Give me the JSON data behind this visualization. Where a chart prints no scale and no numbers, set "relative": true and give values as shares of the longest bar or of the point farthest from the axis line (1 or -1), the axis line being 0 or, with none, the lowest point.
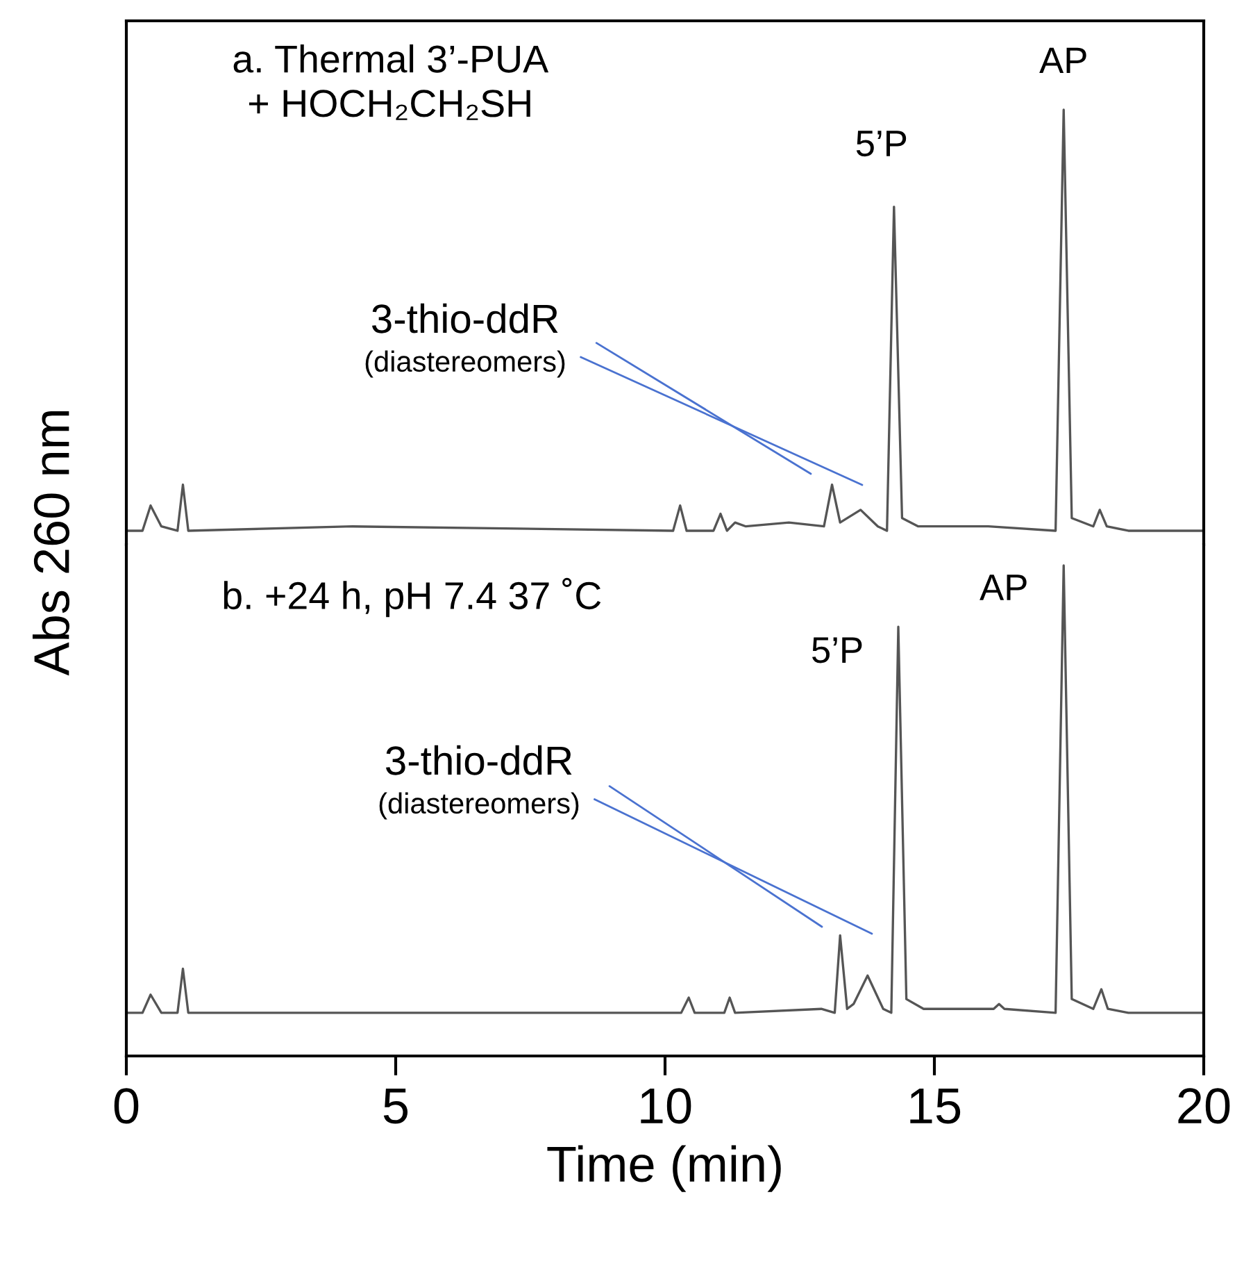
{
  "chart_data": [
    {
      "type": "line",
      "title": "a. Thermal 3’-PUA\n+ HOCH₂CH₂SH",
      "ylabel": "Abs 260 nm",
      "relative": true,
      "xlim": [
        0,
        20
      ],
      "tick_labels": false,
      "series": [
        {
          "color": "#555555",
          "x": [
            0,
            0.3,
            0.45,
            0.65,
            0.95,
            1.05,
            1.15,
            4.2,
            10.15,
            10.28,
            10.4,
            10.9,
            11.03,
            11.15,
            11.3,
            11.5,
            12.3,
            12.95,
            13.1,
            13.25,
            13.63,
            13.95,
            14.12,
            14.25,
            14.4,
            14.7,
            16.0,
            17.25,
            17.4,
            17.55,
            17.95,
            18.07,
            18.2,
            18.6,
            20
          ],
          "values": [
            0.032,
            0.032,
            0.09,
            0.042,
            0.032,
            0.138,
            0.032,
            0.042,
            0.032,
            0.09,
            0.032,
            0.032,
            0.071,
            0.032,
            0.051,
            0.042,
            0.051,
            0.042,
            0.138,
            0.051,
            0.08,
            0.042,
            0.032,
            0.777,
            0.061,
            0.042,
            0.042,
            0.032,
            1,
            0.061,
            0.042,
            0.08,
            0.042,
            0.032,
            0.032
          ]
        }
      ],
      "annotations": [
        "3-thio-ddR",
        "(diastereomers)",
        {
          "text": "5’P",
          "x": 14.25,
          "y": 0.777
        },
        {
          "text": "AP",
          "x": 17.4,
          "y": 1
        }
      ]
    },
    {
      "type": "line",
      "title": "b. +24 h, pH 7.4 37 ˚C",
      "xlabel": "Time (min)",
      "relative": true,
      "xlim": [
        0,
        20
      ],
      "xticks": [
        0,
        5,
        10,
        15,
        20
      ],
      "tick_labels": "x",
      "series": [
        {
          "color": "#555555",
          "x": [
            0,
            0.3,
            0.45,
            0.65,
            0.95,
            1.05,
            1.15,
            10.3,
            10.44,
            10.55,
            11.1,
            11.2,
            11.3,
            12.9,
            13.15,
            13.25,
            13.38,
            13.5,
            13.76,
            14.05,
            14.2,
            14.33,
            14.48,
            14.8,
            16.1,
            16.2,
            16.3,
            17.25,
            17.4,
            17.55,
            17.95,
            18.1,
            18.22,
            18.6,
            20
          ],
          "values": [
            0.088,
            0.088,
            0.125,
            0.088,
            0.088,
            0.178,
            0.088,
            0.088,
            0.119,
            0.088,
            0.088,
            0.119,
            0.088,
            0.096,
            0.088,
            0.246,
            0.096,
            0.106,
            0.164,
            0.096,
            0.088,
            0.875,
            0.116,
            0.096,
            0.096,
            0.106,
            0.096,
            0.088,
            1,
            0.116,
            0.096,
            0.136,
            0.096,
            0.088,
            0.088
          ]
        }
      ],
      "annotations": [
        "3-thio-ddR",
        "(diastereomers)",
        {
          "text": "5’P",
          "x": 14.33,
          "y": 0.875
        },
        {
          "text": "AP",
          "x": 17.4,
          "y": 1
        }
      ]
    }
  ]
}
